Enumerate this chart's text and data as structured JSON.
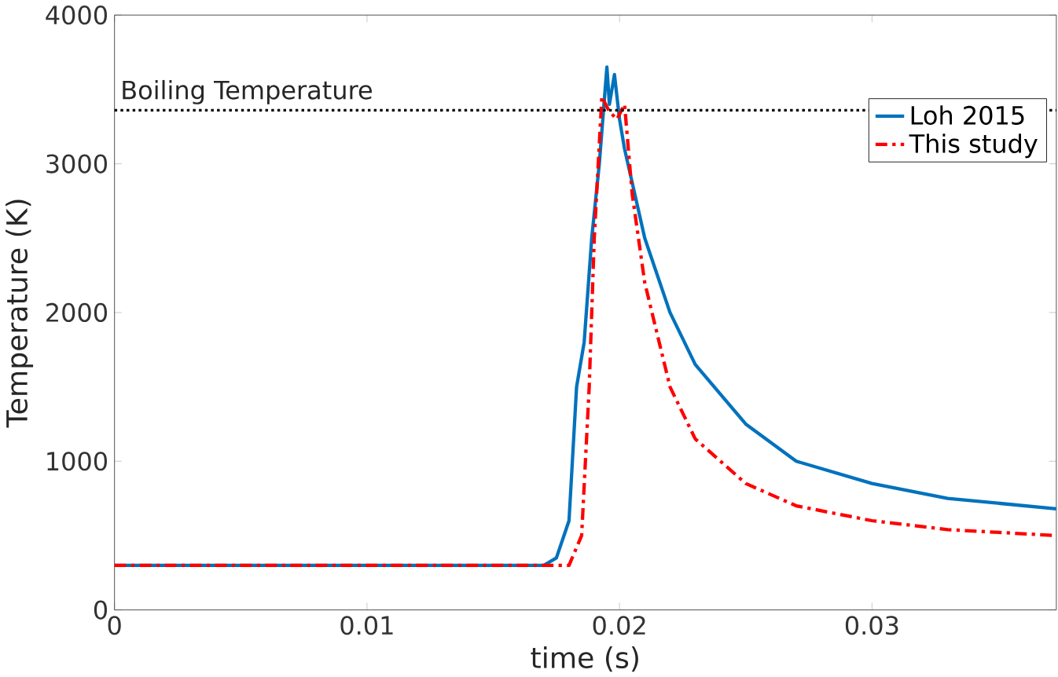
{
  "chart_data": {
    "type": "line",
    "xlabel": "time (s)",
    "ylabel": "Temperature (K)",
    "xlim": [
      0,
      0.0373
    ],
    "ylim": [
      0,
      4000
    ],
    "xticks": [
      0,
      0.01,
      0.02,
      0.03
    ],
    "yticks": [
      0,
      1000,
      2000,
      3000,
      4000
    ],
    "legend": "top right",
    "grid": false,
    "ref_lines": [
      {
        "axis": "y",
        "value": 3360,
        "label": "Boiling Temperature",
        "color": "#000000",
        "line_style": "dotted"
      }
    ],
    "series": [
      {
        "name": "Loh 2015",
        "color": "#0072bd",
        "line_style": "solid",
        "x": [
          0,
          0.005,
          0.01,
          0.015,
          0.017,
          0.0175,
          0.018,
          0.0183,
          0.0186,
          0.0189,
          0.0192,
          0.0195,
          0.0196,
          0.0198,
          0.02,
          0.0202,
          0.021,
          0.022,
          0.023,
          0.025,
          0.027,
          0.03,
          0.033,
          0.0373
        ],
        "values": [
          300,
          300,
          300,
          300,
          300,
          350,
          600,
          1500,
          1800,
          2500,
          3000,
          3650,
          3400,
          3600,
          3300,
          3100,
          2500,
          2000,
          1650,
          1250,
          1000,
          850,
          750,
          680
        ]
      },
      {
        "name": "This study",
        "color": "#ff0000",
        "line_style": "dashdotted",
        "x": [
          0,
          0.005,
          0.01,
          0.015,
          0.018,
          0.0185,
          0.0188,
          0.019,
          0.0193,
          0.0196,
          0.0199,
          0.0202,
          0.0205,
          0.021,
          0.022,
          0.023,
          0.025,
          0.027,
          0.03,
          0.033,
          0.0373
        ],
        "values": [
          300,
          300,
          300,
          300,
          300,
          500,
          1500,
          2500,
          3450,
          3350,
          3300,
          3400,
          2800,
          2200,
          1500,
          1150,
          850,
          700,
          600,
          540,
          500
        ]
      }
    ]
  }
}
